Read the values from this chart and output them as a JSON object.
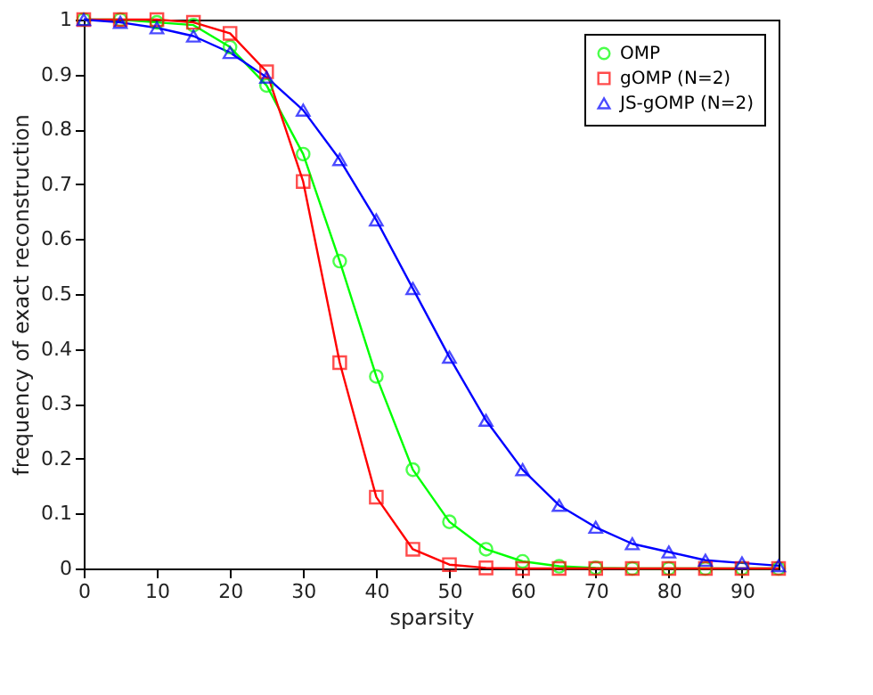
{
  "chart_data": {
    "type": "line",
    "xlabel": "sparsity",
    "ylabel": "frequency of exact reconstruction",
    "x": [
      0,
      5,
      10,
      15,
      20,
      25,
      30,
      35,
      40,
      45,
      50,
      55,
      60,
      65,
      70,
      75,
      80,
      85,
      90,
      95
    ],
    "series": [
      {
        "name": "OMP",
        "color": "#00ff00",
        "marker": "circle",
        "values": [
          1,
          1,
          0.995,
          0.99,
          0.95,
          0.88,
          0.755,
          0.56,
          0.35,
          0.18,
          0.085,
          0.035,
          0.013,
          0.004,
          0.001,
          0,
          0,
          0,
          0,
          0
        ]
      },
      {
        "name": "gOMP (N=2)",
        "color": "#ff0000",
        "marker": "square",
        "values": [
          1,
          1,
          1,
          0.995,
          0.975,
          0.905,
          0.705,
          0.375,
          0.13,
          0.035,
          0.007,
          0.001,
          0,
          0,
          0,
          0,
          0,
          0,
          0,
          0
        ]
      },
      {
        "name": "JS-gOMP (N=2)",
        "color": "#0000ff",
        "marker": "triangle",
        "values": [
          1,
          0.995,
          0.985,
          0.97,
          0.94,
          0.895,
          0.835,
          0.745,
          0.635,
          0.51,
          0.385,
          0.27,
          0.18,
          0.115,
          0.075,
          0.045,
          0.03,
          0.015,
          0.01,
          0.005
        ]
      }
    ],
    "xlim": [
      0,
      95
    ],
    "xticks": [
      0,
      10,
      20,
      30,
      40,
      50,
      60,
      70,
      80,
      90
    ],
    "ylim": [
      0,
      1
    ],
    "yticks": [
      0,
      0.1,
      0.2,
      0.3,
      0.4,
      0.5,
      0.6,
      0.7,
      0.8,
      0.9,
      1
    ],
    "grid": false,
    "legend": "top right",
    "line_style": "solid"
  }
}
